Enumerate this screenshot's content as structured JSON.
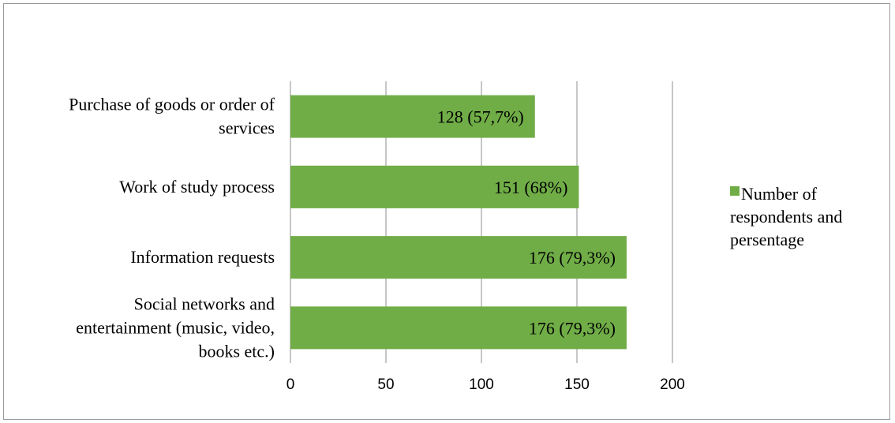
{
  "chart_data": {
    "type": "bar",
    "orientation": "horizontal",
    "categories": [
      "Purchase of goods or order of services",
      "Work of study process",
      "Information requests",
      "Social networks and entertainment (music, video, books etc.)"
    ],
    "category_lines": [
      [
        "Purchase of goods or order of",
        "services"
      ],
      [
        "Work of study process"
      ],
      [
        "Information requests"
      ],
      [
        "Social networks and",
        "entertainment (music, video,",
        "books etc.)"
      ]
    ],
    "series": [
      {
        "name": "Number of respondents and persentage",
        "name_lines": [
          "Number of",
          "respondents and",
          "persentage"
        ],
        "values": [
          128,
          151,
          176,
          176
        ],
        "data_labels": [
          "128 (57,7%)",
          "151 (68%)",
          "176 (79,3%)",
          "176 (79,3%)"
        ],
        "color": "#70ad47"
      }
    ],
    "xlim": [
      0,
      200
    ],
    "xticks": [
      0,
      50,
      100,
      150,
      200
    ],
    "xtick_labels": [
      "0",
      "50",
      "100",
      "150",
      "200"
    ],
    "grid": "vertical",
    "gridline_color": "#8c8c8c",
    "legend_position": "right",
    "title": "",
    "xlabel": "",
    "ylabel": ""
  }
}
